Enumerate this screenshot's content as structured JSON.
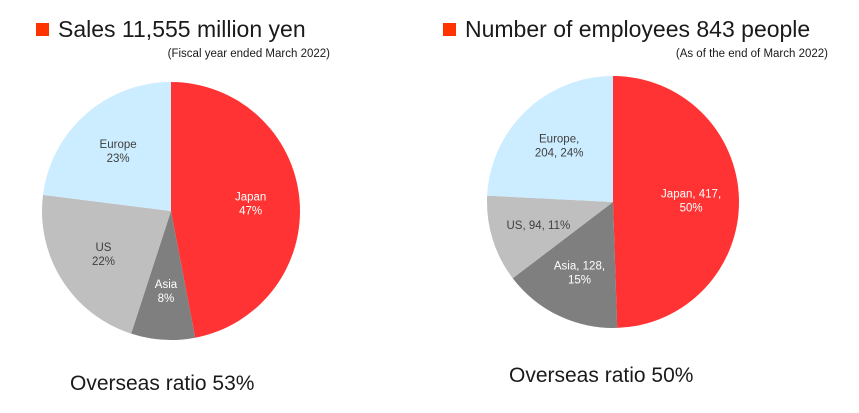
{
  "chart_data": [
    {
      "type": "pie",
      "title": "Sales 11,555 million yen",
      "subtitle": "(Fiscal year ended March 2022)",
      "footer": "Overseas ratio 53%",
      "slices": [
        {
          "name": "Japan",
          "value": 47,
          "color": "#ff3333",
          "label_lines": [
            "Japan",
            "47%"
          ],
          "label_color": "#ffffff"
        },
        {
          "name": "Asia",
          "value": 8,
          "color": "#7f7f7f",
          "label_lines": [
            "Asia",
            "8%"
          ],
          "label_color": "#ffffff"
        },
        {
          "name": "US",
          "value": 22,
          "color": "#bfbfbf",
          "label_lines": [
            "US",
            "22%"
          ],
          "label_color": "#404040"
        },
        {
          "name": "Europe",
          "value": 23,
          "color": "#ccecff",
          "label_lines": [
            "Europe",
            "23%"
          ],
          "label_color": "#404040"
        }
      ]
    },
    {
      "type": "pie",
      "title": "Number of employees 843 people",
      "subtitle": "(As of the end of March 2022)",
      "footer": "Overseas ratio 50%",
      "slices": [
        {
          "name": "Japan",
          "value": 417,
          "color": "#ff3333",
          "label_lines": [
            "Japan, 417,",
            "50%"
          ],
          "label_color": "#ffffff"
        },
        {
          "name": "Asia",
          "value": 128,
          "color": "#7f7f7f",
          "label_lines": [
            "Asia, 128,",
            "15%"
          ],
          "label_color": "#ffffff"
        },
        {
          "name": "US",
          "value": 94,
          "color": "#bfbfbf",
          "label_lines": [
            "US, 94, 11%"
          ],
          "label_color": "#404040"
        },
        {
          "name": "Europe",
          "value": 204,
          "color": "#ccecff",
          "label_lines": [
            "Europe,",
            "204, 24%"
          ],
          "label_color": "#404040"
        }
      ]
    }
  ],
  "accent_color": "#ff3300"
}
